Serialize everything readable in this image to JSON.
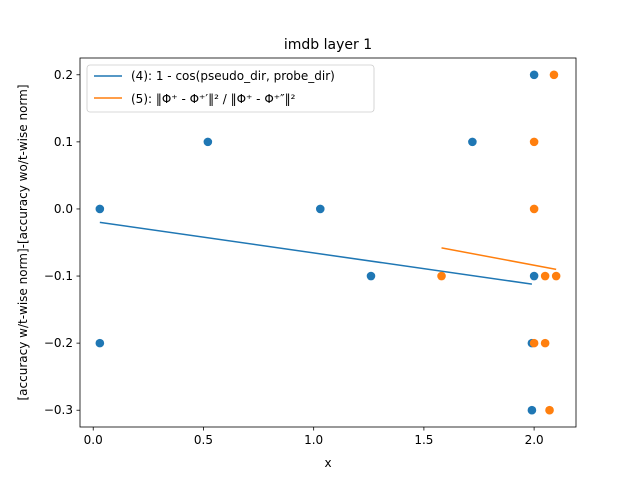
{
  "chart_data": {
    "type": "scatter",
    "title": "imdb layer 1",
    "xlabel": "x",
    "ylabel": "[accuracy w/t-wise norm]-[accuracy wo/t-wise norm]",
    "xlim": [
      -0.06,
      2.19
    ],
    "ylim": [
      -0.325,
      0.225
    ],
    "xticks": [
      "0.0",
      "0.5",
      "1.0",
      "1.5",
      "2.0"
    ],
    "yticks": [
      "−0.3",
      "−0.2",
      "−0.1",
      "0.0",
      "0.1",
      "0.2"
    ],
    "legend_position": "top-left",
    "grid": false,
    "series": [
      {
        "name": "(4): 1 - cos(pseudo_dir, probe_dir)",
        "color": "#1f77b4",
        "points": [
          {
            "x": 0.03,
            "y": 0.0
          },
          {
            "x": 0.03,
            "y": -0.2
          },
          {
            "x": 0.52,
            "y": 0.1
          },
          {
            "x": 1.03,
            "y": 0.0
          },
          {
            "x": 1.26,
            "y": -0.1
          },
          {
            "x": 1.72,
            "y": 0.1
          },
          {
            "x": 1.99,
            "y": -0.2
          },
          {
            "x": 1.99,
            "y": -0.3
          },
          {
            "x": 2.0,
            "y": 0.2
          },
          {
            "x": 2.0,
            "y": -0.1
          }
        ],
        "fit": [
          {
            "x": 0.03,
            "y": -0.02
          },
          {
            "x": 1.99,
            "y": -0.112
          }
        ]
      },
      {
        "name": "(5): ‖Φ⁺ - Φ⁺′‖²  / ‖Φ⁺ - Φ⁺″‖²",
        "color": "#ff7f0e",
        "points": [
          {
            "x": 1.58,
            "y": -0.1
          },
          {
            "x": 2.0,
            "y": 0.1
          },
          {
            "x": 2.0,
            "y": 0.0
          },
          {
            "x": 2.0,
            "y": -0.2
          },
          {
            "x": 2.05,
            "y": -0.1
          },
          {
            "x": 2.05,
            "y": -0.2
          },
          {
            "x": 2.07,
            "y": -0.3
          },
          {
            "x": 2.09,
            "y": 0.2
          },
          {
            "x": 2.1,
            "y": -0.1
          }
        ],
        "fit": [
          {
            "x": 1.58,
            "y": -0.058
          },
          {
            "x": 2.1,
            "y": -0.09
          }
        ]
      }
    ]
  }
}
